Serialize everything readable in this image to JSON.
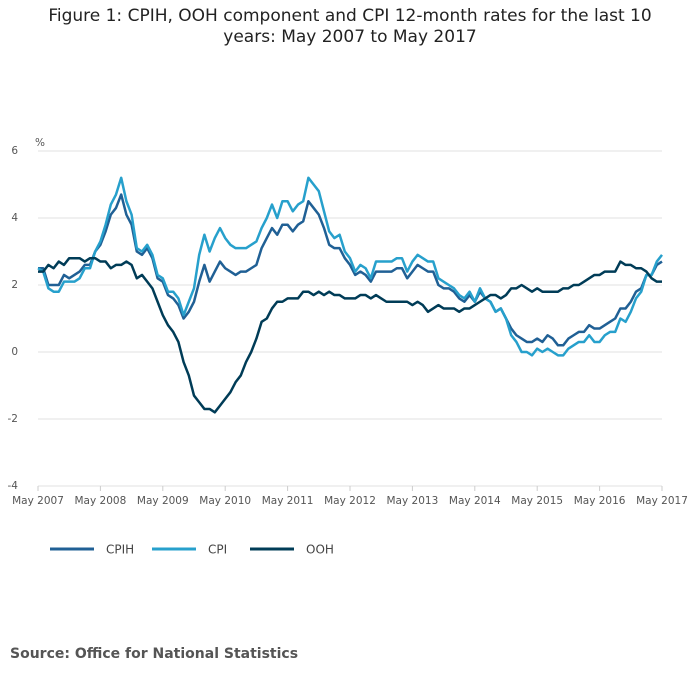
{
  "chart_data": {
    "type": "line",
    "title": "Figure 1: CPIH, OOH component and CPI 12-month rates for the last 10 years: May 2007 to May 2017",
    "source": "Source: Office for National Statistics",
    "y_label": "%",
    "ylim": [
      -4,
      6
    ],
    "yticks": [
      -4,
      -2,
      0,
      2,
      4,
      6
    ],
    "grid": true,
    "categories": [
      "May 2007",
      null,
      null,
      null,
      null,
      null,
      null,
      null,
      null,
      null,
      null,
      null,
      "May 2008",
      null,
      null,
      null,
      null,
      null,
      null,
      null,
      null,
      null,
      null,
      null,
      "May 2009",
      null,
      null,
      null,
      null,
      null,
      null,
      null,
      null,
      null,
      null,
      null,
      "May 2010",
      null,
      null,
      null,
      null,
      null,
      null,
      null,
      null,
      null,
      null,
      null,
      "May 2011",
      null,
      null,
      null,
      null,
      null,
      null,
      null,
      null,
      null,
      null,
      null,
      "May 2012",
      null,
      null,
      null,
      null,
      null,
      null,
      null,
      null,
      null,
      null,
      null,
      "May 2013",
      null,
      null,
      null,
      null,
      null,
      null,
      null,
      null,
      null,
      null,
      null,
      "May 2014",
      null,
      null,
      null,
      null,
      null,
      null,
      null,
      null,
      null,
      null,
      null,
      "May 2015",
      null,
      null,
      null,
      null,
      null,
      null,
      null,
      null,
      null,
      null,
      null,
      "May 2016",
      null,
      null,
      null,
      null,
      null,
      null,
      null,
      null,
      null,
      null,
      null,
      "May 2017"
    ],
    "series": [
      {
        "name": "CPIH",
        "color": "#206095",
        "values": [
          2.5,
          2.5,
          2.0,
          2.0,
          2.0,
          2.3,
          2.2,
          2.3,
          2.4,
          2.6,
          2.6,
          3.0,
          3.2,
          3.6,
          4.1,
          4.3,
          4.7,
          4.1,
          3.8,
          3.0,
          2.9,
          3.1,
          2.8,
          2.2,
          2.1,
          1.7,
          1.6,
          1.4,
          1.0,
          1.2,
          1.5,
          2.1,
          2.6,
          2.1,
          2.4,
          2.7,
          2.5,
          2.4,
          2.3,
          2.4,
          2.4,
          2.5,
          2.6,
          3.1,
          3.4,
          3.7,
          3.5,
          3.8,
          3.8,
          3.6,
          3.8,
          3.9,
          4.5,
          4.3,
          4.1,
          3.7,
          3.2,
          3.1,
          3.1,
          2.8,
          2.6,
          2.3,
          2.4,
          2.3,
          2.1,
          2.4,
          2.4,
          2.4,
          2.4,
          2.5,
          2.5,
          2.2,
          2.4,
          2.6,
          2.5,
          2.4,
          2.4,
          2.0,
          1.9,
          1.9,
          1.8,
          1.6,
          1.5,
          1.7,
          1.5,
          1.8,
          1.6,
          1.5,
          1.2,
          1.3,
          1.0,
          0.7,
          0.5,
          0.4,
          0.3,
          0.3,
          0.4,
          0.3,
          0.5,
          0.4,
          0.2,
          0.2,
          0.4,
          0.5,
          0.6,
          0.6,
          0.8,
          0.7,
          0.7,
          0.8,
          0.9,
          1.0,
          1.3,
          1.3,
          1.5,
          1.8,
          1.9,
          2.3,
          2.3,
          2.6,
          2.7
        ]
      },
      {
        "name": "CPI",
        "color": "#27a0cc",
        "values": [
          2.5,
          2.4,
          1.9,
          1.8,
          1.8,
          2.1,
          2.1,
          2.1,
          2.2,
          2.5,
          2.5,
          3.0,
          3.3,
          3.8,
          4.4,
          4.7,
          5.2,
          4.5,
          4.1,
          3.1,
          3.0,
          3.2,
          2.9,
          2.3,
          2.2,
          1.8,
          1.8,
          1.6,
          1.1,
          1.5,
          1.9,
          2.9,
          3.5,
          3.0,
          3.4,
          3.7,
          3.4,
          3.2,
          3.1,
          3.1,
          3.1,
          3.2,
          3.3,
          3.7,
          4.0,
          4.4,
          4.0,
          4.5,
          4.5,
          4.2,
          4.4,
          4.5,
          5.2,
          5.0,
          4.8,
          4.2,
          3.6,
          3.4,
          3.5,
          3.0,
          2.8,
          2.4,
          2.6,
          2.5,
          2.2,
          2.7,
          2.7,
          2.7,
          2.7,
          2.8,
          2.8,
          2.4,
          2.7,
          2.9,
          2.8,
          2.7,
          2.7,
          2.2,
          2.1,
          2.0,
          1.9,
          1.7,
          1.6,
          1.8,
          1.5,
          1.9,
          1.6,
          1.5,
          1.2,
          1.3,
          1.0,
          0.5,
          0.3,
          0.0,
          0.0,
          -0.1,
          0.1,
          0.0,
          0.1,
          0.0,
          -0.1,
          -0.1,
          0.1,
          0.2,
          0.3,
          0.3,
          0.5,
          0.3,
          0.3,
          0.5,
          0.6,
          0.6,
          1.0,
          0.9,
          1.2,
          1.6,
          1.8,
          2.3,
          2.3,
          2.7,
          2.9
        ]
      },
      {
        "name": "OOH",
        "color": "#003c57",
        "values": [
          2.4,
          2.4,
          2.6,
          2.5,
          2.7,
          2.6,
          2.8,
          2.8,
          2.8,
          2.7,
          2.8,
          2.8,
          2.7,
          2.7,
          2.5,
          2.6,
          2.6,
          2.7,
          2.6,
          2.2,
          2.3,
          2.1,
          1.9,
          1.5,
          1.1,
          0.8,
          0.6,
          0.3,
          -0.3,
          -0.7,
          -1.3,
          -1.5,
          -1.7,
          -1.7,
          -1.8,
          -1.6,
          -1.4,
          -1.2,
          -0.9,
          -0.7,
          -0.3,
          0.0,
          0.4,
          0.9,
          1.0,
          1.3,
          1.5,
          1.5,
          1.6,
          1.6,
          1.6,
          1.8,
          1.8,
          1.7,
          1.8,
          1.7,
          1.8,
          1.7,
          1.7,
          1.6,
          1.6,
          1.6,
          1.7,
          1.7,
          1.6,
          1.7,
          1.6,
          1.5,
          1.5,
          1.5,
          1.5,
          1.5,
          1.4,
          1.5,
          1.4,
          1.2,
          1.3,
          1.4,
          1.3,
          1.3,
          1.3,
          1.2,
          1.3,
          1.3,
          1.4,
          1.5,
          1.6,
          1.7,
          1.7,
          1.6,
          1.7,
          1.9,
          1.9,
          2.0,
          1.9,
          1.8,
          1.9,
          1.8,
          1.8,
          1.8,
          1.8,
          1.9,
          1.9,
          2.0,
          2.0,
          2.1,
          2.2,
          2.3,
          2.3,
          2.4,
          2.4,
          2.4,
          2.7,
          2.6,
          2.6,
          2.5,
          2.5,
          2.4,
          2.2,
          2.1,
          2.1
        ]
      }
    ]
  }
}
